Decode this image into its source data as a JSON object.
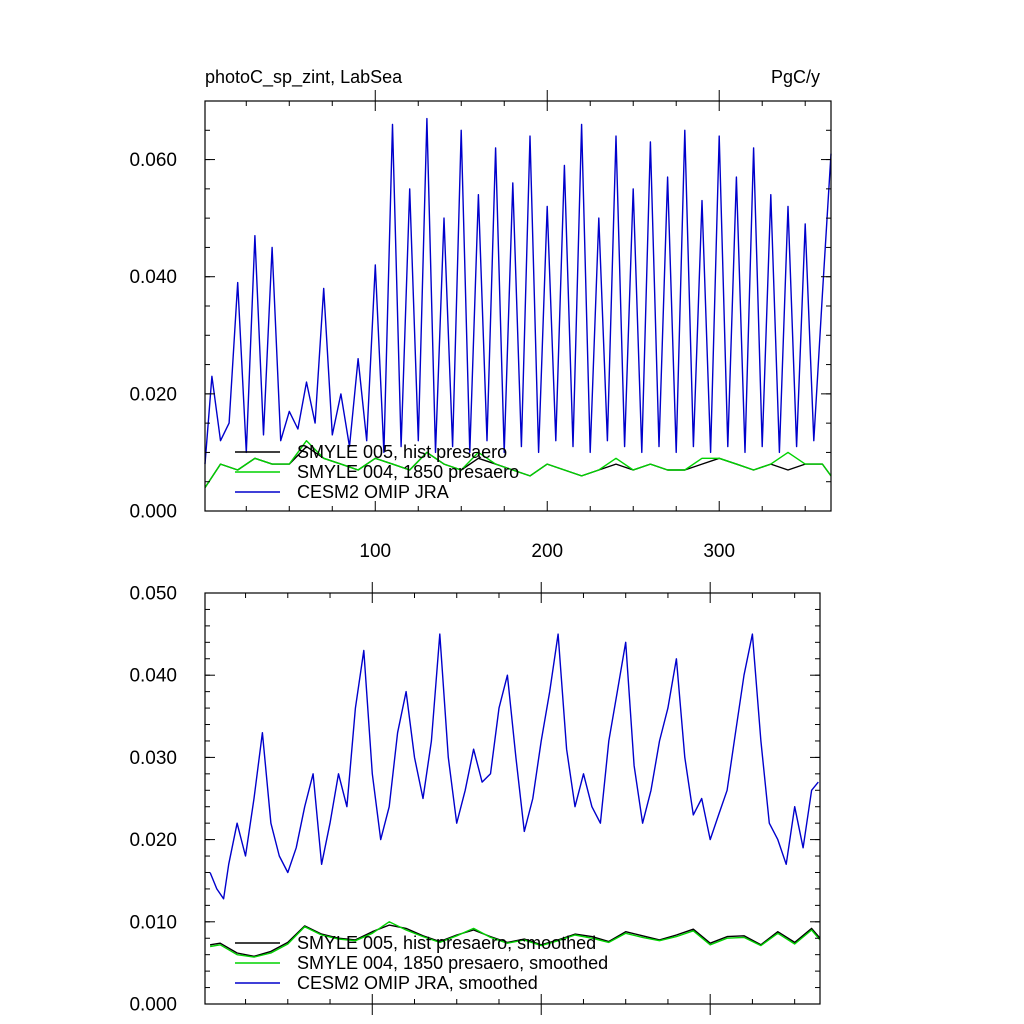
{
  "chart_data": [
    {
      "type": "line",
      "title_left": "photoC_sp_zint, LabSea",
      "title_right": "PgC/y",
      "xlabel": "",
      "ylabel": "",
      "xlim": [
        1,
        365
      ],
      "ylim": [
        0,
        0.07
      ],
      "y_ticks": [
        "0.000",
        "0.020",
        "0.040",
        "0.060"
      ],
      "x_ticks": [
        "100",
        "200",
        "300"
      ],
      "grid": false,
      "legend_position": "bottom-left",
      "series": [
        {
          "name": "SMYLE 005, hist presaero",
          "color": "#000000",
          "x": [
            1,
            10,
            20,
            30,
            40,
            50,
            60,
            70,
            80,
            90,
            100,
            110,
            120,
            130,
            140,
            150,
            160,
            170,
            180,
            190,
            200,
            210,
            220,
            230,
            240,
            250,
            260,
            270,
            280,
            290,
            300,
            310,
            320,
            330,
            340,
            350,
            360,
            365
          ],
          "y": [
            0.004,
            0.008,
            0.007,
            0.009,
            0.008,
            0.008,
            0.011,
            0.009,
            0.008,
            0.007,
            0.009,
            0.008,
            0.007,
            0.01,
            0.008,
            0.007,
            0.009,
            0.008,
            0.007,
            0.006,
            0.008,
            0.007,
            0.006,
            0.007,
            0.008,
            0.007,
            0.008,
            0.007,
            0.007,
            0.008,
            0.009,
            0.008,
            0.007,
            0.008,
            0.007,
            0.008,
            0.008,
            0.006
          ]
        },
        {
          "name": "SMYLE 004, 1850 presaero",
          "color": "#00d200",
          "x": [
            1,
            10,
            20,
            30,
            40,
            50,
            60,
            70,
            80,
            90,
            100,
            110,
            120,
            130,
            140,
            150,
            160,
            170,
            180,
            190,
            200,
            210,
            220,
            230,
            240,
            250,
            260,
            270,
            280,
            290,
            300,
            310,
            320,
            330,
            340,
            350,
            360,
            365
          ],
          "y": [
            0.004,
            0.008,
            0.007,
            0.009,
            0.008,
            0.008,
            0.012,
            0.009,
            0.008,
            0.007,
            0.009,
            0.008,
            0.007,
            0.01,
            0.008,
            0.007,
            0.01,
            0.008,
            0.007,
            0.006,
            0.008,
            0.007,
            0.006,
            0.007,
            0.009,
            0.007,
            0.008,
            0.007,
            0.007,
            0.009,
            0.009,
            0.008,
            0.007,
            0.008,
            0.01,
            0.008,
            0.008,
            0.006
          ]
        },
        {
          "name": "CESM2 OMIP JRA",
          "color": "#0000cc",
          "x": [
            1,
            5,
            10,
            15,
            20,
            25,
            30,
            35,
            40,
            45,
            50,
            55,
            60,
            65,
            70,
            75,
            80,
            85,
            90,
            95,
            100,
            105,
            110,
            115,
            120,
            125,
            130,
            135,
            140,
            145,
            150,
            155,
            160,
            165,
            170,
            175,
            180,
            185,
            190,
            195,
            200,
            205,
            210,
            215,
            220,
            225,
            230,
            235,
            240,
            245,
            250,
            255,
            260,
            265,
            270,
            275,
            280,
            285,
            290,
            295,
            300,
            305,
            310,
            315,
            320,
            325,
            330,
            335,
            340,
            345,
            350,
            355,
            360,
            365
          ],
          "y": [
            0.008,
            0.023,
            0.012,
            0.015,
            0.039,
            0.01,
            0.047,
            0.013,
            0.045,
            0.012,
            0.017,
            0.014,
            0.022,
            0.015,
            0.038,
            0.013,
            0.02,
            0.011,
            0.026,
            0.012,
            0.042,
            0.01,
            0.066,
            0.011,
            0.055,
            0.012,
            0.067,
            0.01,
            0.05,
            0.011,
            0.065,
            0.01,
            0.054,
            0.012,
            0.062,
            0.01,
            0.056,
            0.011,
            0.064,
            0.01,
            0.052,
            0.012,
            0.059,
            0.011,
            0.066,
            0.01,
            0.05,
            0.012,
            0.064,
            0.011,
            0.055,
            0.01,
            0.063,
            0.011,
            0.057,
            0.01,
            0.065,
            0.011,
            0.053,
            0.01,
            0.064,
            0.011,
            0.057,
            0.01,
            0.062,
            0.011,
            0.054,
            0.01,
            0.052,
            0.011,
            0.049,
            0.012,
            0.037,
            0.061
          ]
        }
      ]
    },
    {
      "type": "line",
      "xlabel": "",
      "ylabel": "",
      "xlim": [
        1,
        365
      ],
      "ylim": [
        0,
        0.05
      ],
      "y_ticks": [
        "0.000",
        "0.010",
        "0.020",
        "0.030",
        "0.040",
        "0.050"
      ],
      "grid": false,
      "legend_position": "bottom-left",
      "series": [
        {
          "name": "SMYLE 005, hist presaero, smoothed",
          "color": "#000000",
          "x": [
            4,
            10,
            20,
            30,
            40,
            50,
            60,
            70,
            80,
            90,
            100,
            110,
            120,
            130,
            140,
            150,
            160,
            170,
            180,
            190,
            200,
            210,
            220,
            230,
            240,
            250,
            260,
            270,
            280,
            290,
            300,
            310,
            320,
            330,
            340,
            350,
            360,
            365
          ],
          "y": [
            0.0072,
            0.0074,
            0.0062,
            0.0058,
            0.0064,
            0.0075,
            0.0095,
            0.0085,
            0.008,
            0.0078,
            0.0088,
            0.0096,
            0.0092,
            0.0083,
            0.0076,
            0.0084,
            0.009,
            0.0082,
            0.0075,
            0.0079,
            0.0072,
            0.0078,
            0.0085,
            0.0082,
            0.0076,
            0.0088,
            0.0083,
            0.0078,
            0.0084,
            0.0091,
            0.0074,
            0.0082,
            0.0083,
            0.0072,
            0.0088,
            0.0075,
            0.0092,
            0.008
          ]
        },
        {
          "name": "SMYLE 004, 1850 presaero, smoothed",
          "color": "#00d200",
          "x": [
            4,
            10,
            20,
            30,
            40,
            50,
            60,
            70,
            80,
            90,
            100,
            110,
            120,
            130,
            140,
            150,
            160,
            170,
            180,
            190,
            200,
            210,
            220,
            230,
            240,
            250,
            260,
            270,
            280,
            290,
            300,
            310,
            320,
            330,
            340,
            350,
            360,
            365
          ],
          "y": [
            0.007,
            0.0072,
            0.006,
            0.0057,
            0.0062,
            0.0073,
            0.0094,
            0.0084,
            0.0079,
            0.0077,
            0.0086,
            0.01,
            0.009,
            0.0082,
            0.0075,
            0.0083,
            0.0092,
            0.0081,
            0.0074,
            0.0078,
            0.0071,
            0.0077,
            0.0084,
            0.008,
            0.0075,
            0.0086,
            0.0081,
            0.0077,
            0.0082,
            0.0089,
            0.0072,
            0.008,
            0.0081,
            0.0071,
            0.0086,
            0.0073,
            0.009,
            0.0078
          ]
        },
        {
          "name": "CESM2 OMIP JRA, smoothed",
          "color": "#0000cc",
          "x": [
            4,
            8,
            12,
            15,
            20,
            25,
            30,
            35,
            40,
            45,
            50,
            55,
            60,
            65,
            70,
            75,
            80,
            85,
            90,
            95,
            100,
            105,
            110,
            115,
            120,
            125,
            130,
            135,
            140,
            145,
            150,
            155,
            160,
            165,
            170,
            175,
            180,
            185,
            190,
            195,
            200,
            205,
            210,
            215,
            220,
            225,
            230,
            235,
            240,
            245,
            250,
            255,
            260,
            265,
            270,
            275,
            280,
            285,
            290,
            295,
            300,
            305,
            310,
            315,
            320,
            325,
            330,
            335,
            340,
            345,
            350,
            355,
            360,
            364
          ],
          "y": [
            0.016,
            0.014,
            0.0128,
            0.017,
            0.022,
            0.018,
            0.025,
            0.033,
            0.022,
            0.018,
            0.016,
            0.019,
            0.024,
            0.028,
            0.017,
            0.022,
            0.028,
            0.024,
            0.036,
            0.043,
            0.028,
            0.02,
            0.024,
            0.033,
            0.038,
            0.03,
            0.025,
            0.032,
            0.045,
            0.03,
            0.022,
            0.026,
            0.031,
            0.027,
            0.028,
            0.036,
            0.04,
            0.03,
            0.021,
            0.025,
            0.032,
            0.038,
            0.045,
            0.031,
            0.024,
            0.028,
            0.024,
            0.022,
            0.032,
            0.038,
            0.044,
            0.029,
            0.022,
            0.026,
            0.032,
            0.036,
            0.042,
            0.03,
            0.023,
            0.025,
            0.02,
            0.023,
            0.026,
            0.033,
            0.04,
            0.045,
            0.032,
            0.022,
            0.02,
            0.017,
            0.024,
            0.019,
            0.026,
            0.027
          ]
        }
      ]
    }
  ]
}
